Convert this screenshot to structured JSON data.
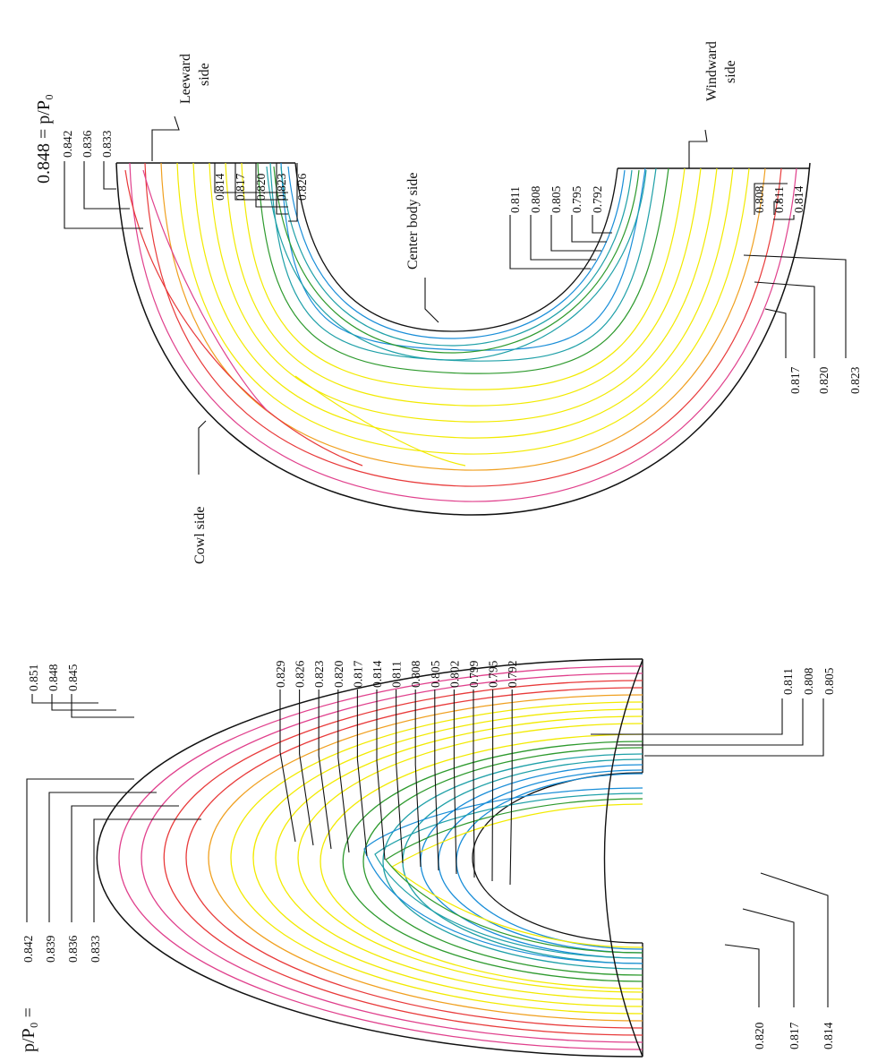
{
  "figure": {
    "panels": [
      {
        "id": "left-panel",
        "header": "p/P₀ =",
        "levels_upper": [
          "0.851",
          "0.848",
          "0.845"
        ],
        "levels_left": [
          "0.842",
          "0.839",
          "0.836",
          "0.833"
        ],
        "levels_mid": [
          "0.829",
          "0.826",
          "0.823",
          "0.820",
          "0.817",
          "0.814",
          "0.811",
          "0.808",
          "0.805",
          "0.802",
          "0.799",
          "0.795",
          "0.792"
        ],
        "levels_inner": [
          "0.811",
          "0.808",
          "0.805"
        ],
        "levels_bottom": [
          "0.820",
          "0.817",
          "0.814"
        ]
      },
      {
        "id": "right-panel",
        "header": "0.848 = p/P₀",
        "levels_upper": [
          "0.842",
          "0.836",
          "0.833"
        ],
        "levels_mid_upper": [
          "0.814",
          "0.817",
          "0.820",
          "0.823",
          "0.826"
        ],
        "levels_mid_lower": [
          "0.811",
          "0.808",
          "0.805",
          "0.795",
          "0.792"
        ],
        "levels_inner": [
          "0.808",
          "0.811",
          "0.814"
        ],
        "levels_bottom": [
          "0.817",
          "0.820",
          "0.823"
        ],
        "annotations": {
          "leeward": [
            "Leeward",
            "side"
          ],
          "windward": [
            "Windward",
            "side"
          ],
          "center_body": "Center body side",
          "cowl": "Cowl side"
        }
      }
    ],
    "colors": {
      "pink": "#e0408c",
      "red": "#e83a3a",
      "orange": "#f0a020",
      "yellow": "#f2ea00",
      "green": "#2e9a2e",
      "teal": "#1fa0a8",
      "blue": "#1a8ed8",
      "ink": "#111111"
    }
  }
}
